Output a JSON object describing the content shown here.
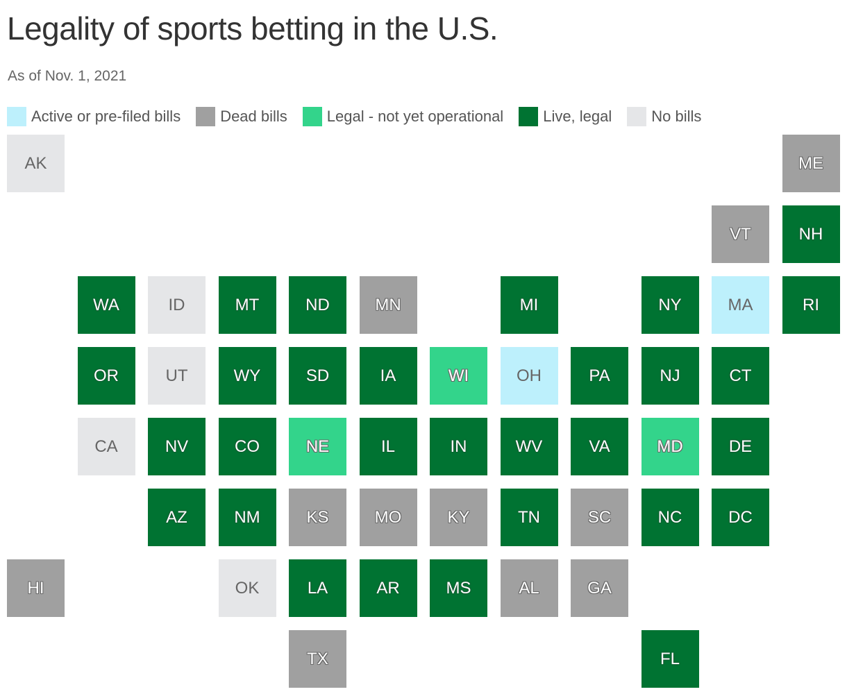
{
  "header": {
    "title": "Legality of sports betting in the U.S.",
    "subtitle": "As of Nov. 1, 2021"
  },
  "legend": [
    {
      "label": "Active or pre-filed bills",
      "color": "#bdf0fc"
    },
    {
      "label": "Dead bills",
      "color": "#a0a0a0"
    },
    {
      "label": "Legal - not yet operational",
      "color": "#33d48b"
    },
    {
      "label": "Live, legal",
      "color": "#007332"
    },
    {
      "label": "No bills",
      "color": "#e5e6e8"
    }
  ],
  "tiles": [
    {
      "label": "AK",
      "status": 4
    },
    {
      "label": "ME",
      "status": 1
    },
    {
      "label": "VT",
      "status": 1
    },
    {
      "label": "NH",
      "status": 3
    },
    {
      "label": "WA",
      "status": 3
    },
    {
      "label": "ID",
      "status": 4
    },
    {
      "label": "MT",
      "status": 3
    },
    {
      "label": "ND",
      "status": 3
    },
    {
      "label": "MN",
      "status": 1
    },
    {
      "label": "MI",
      "status": 3
    },
    {
      "label": "NY",
      "status": 3
    },
    {
      "label": "MA",
      "status": 0
    },
    {
      "label": "RI",
      "status": 3
    },
    {
      "label": "OR",
      "status": 3
    },
    {
      "label": "UT",
      "status": 4
    },
    {
      "label": "WY",
      "status": 3
    },
    {
      "label": "SD",
      "status": 3
    },
    {
      "label": "IA",
      "status": 3
    },
    {
      "label": "WI",
      "status": 2
    },
    {
      "label": "OH",
      "status": 0
    },
    {
      "label": "PA",
      "status": 3
    },
    {
      "label": "NJ",
      "status": 3
    },
    {
      "label": "CT",
      "status": 3
    },
    {
      "label": "CA",
      "status": 4
    },
    {
      "label": "NV",
      "status": 3
    },
    {
      "label": "CO",
      "status": 3
    },
    {
      "label": "NE",
      "status": 2
    },
    {
      "label": "IL",
      "status": 3
    },
    {
      "label": "IN",
      "status": 3
    },
    {
      "label": "WV",
      "status": 3
    },
    {
      "label": "VA",
      "status": 3
    },
    {
      "label": "MD",
      "status": 2
    },
    {
      "label": "DE",
      "status": 3
    },
    {
      "label": "AZ",
      "status": 3
    },
    {
      "label": "NM",
      "status": 3
    },
    {
      "label": "KS",
      "status": 1
    },
    {
      "label": "MO",
      "status": 1
    },
    {
      "label": "KY",
      "status": 1
    },
    {
      "label": "TN",
      "status": 3
    },
    {
      "label": "SC",
      "status": 1
    },
    {
      "label": "NC",
      "status": 3
    },
    {
      "label": "DC",
      "status": 3
    },
    {
      "label": "HI",
      "status": 1
    },
    {
      "label": "OK",
      "status": 4
    },
    {
      "label": "LA",
      "status": 3
    },
    {
      "label": "AR",
      "status": 3
    },
    {
      "label": "MS",
      "status": 3
    },
    {
      "label": "AL",
      "status": 1
    },
    {
      "label": "GA",
      "status": 1
    },
    {
      "label": "TX",
      "status": 1
    },
    {
      "label": "FL",
      "status": 3
    }
  ]
}
